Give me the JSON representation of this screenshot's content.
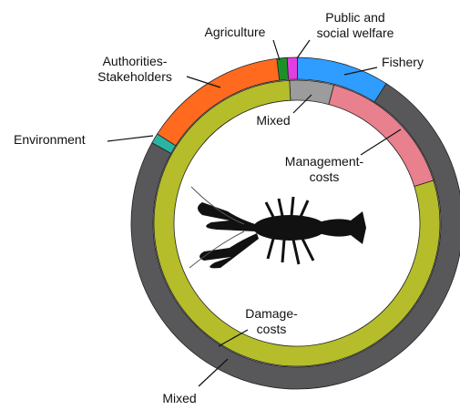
{
  "chart_data": {
    "type": "nested-donut",
    "rings": [
      {
        "categories": [
          "Agriculture",
          "Public and\nsocial welfare",
          "Fishery",
          "Mixed",
          "Environment",
          "Authorities-\nStakeholders"
        ],
        "values": [
          1,
          1,
          9,
          74,
          1,
          14
        ],
        "colors": [
          "#1f8f2a",
          "#e23fe0",
          "#2f9cff",
          "#58585a",
          "#2bb3a2",
          "#ff6a1f"
        ]
      },
      {
        "categories": [
          "Mixed",
          "Management-\ncosts",
          "Damage-\ncosts"
        ],
        "values": [
          5,
          16,
          79
        ],
        "colors": [
          "#9c9c9c",
          "#e9808e",
          "#b5bd2a"
        ]
      }
    ]
  }
}
